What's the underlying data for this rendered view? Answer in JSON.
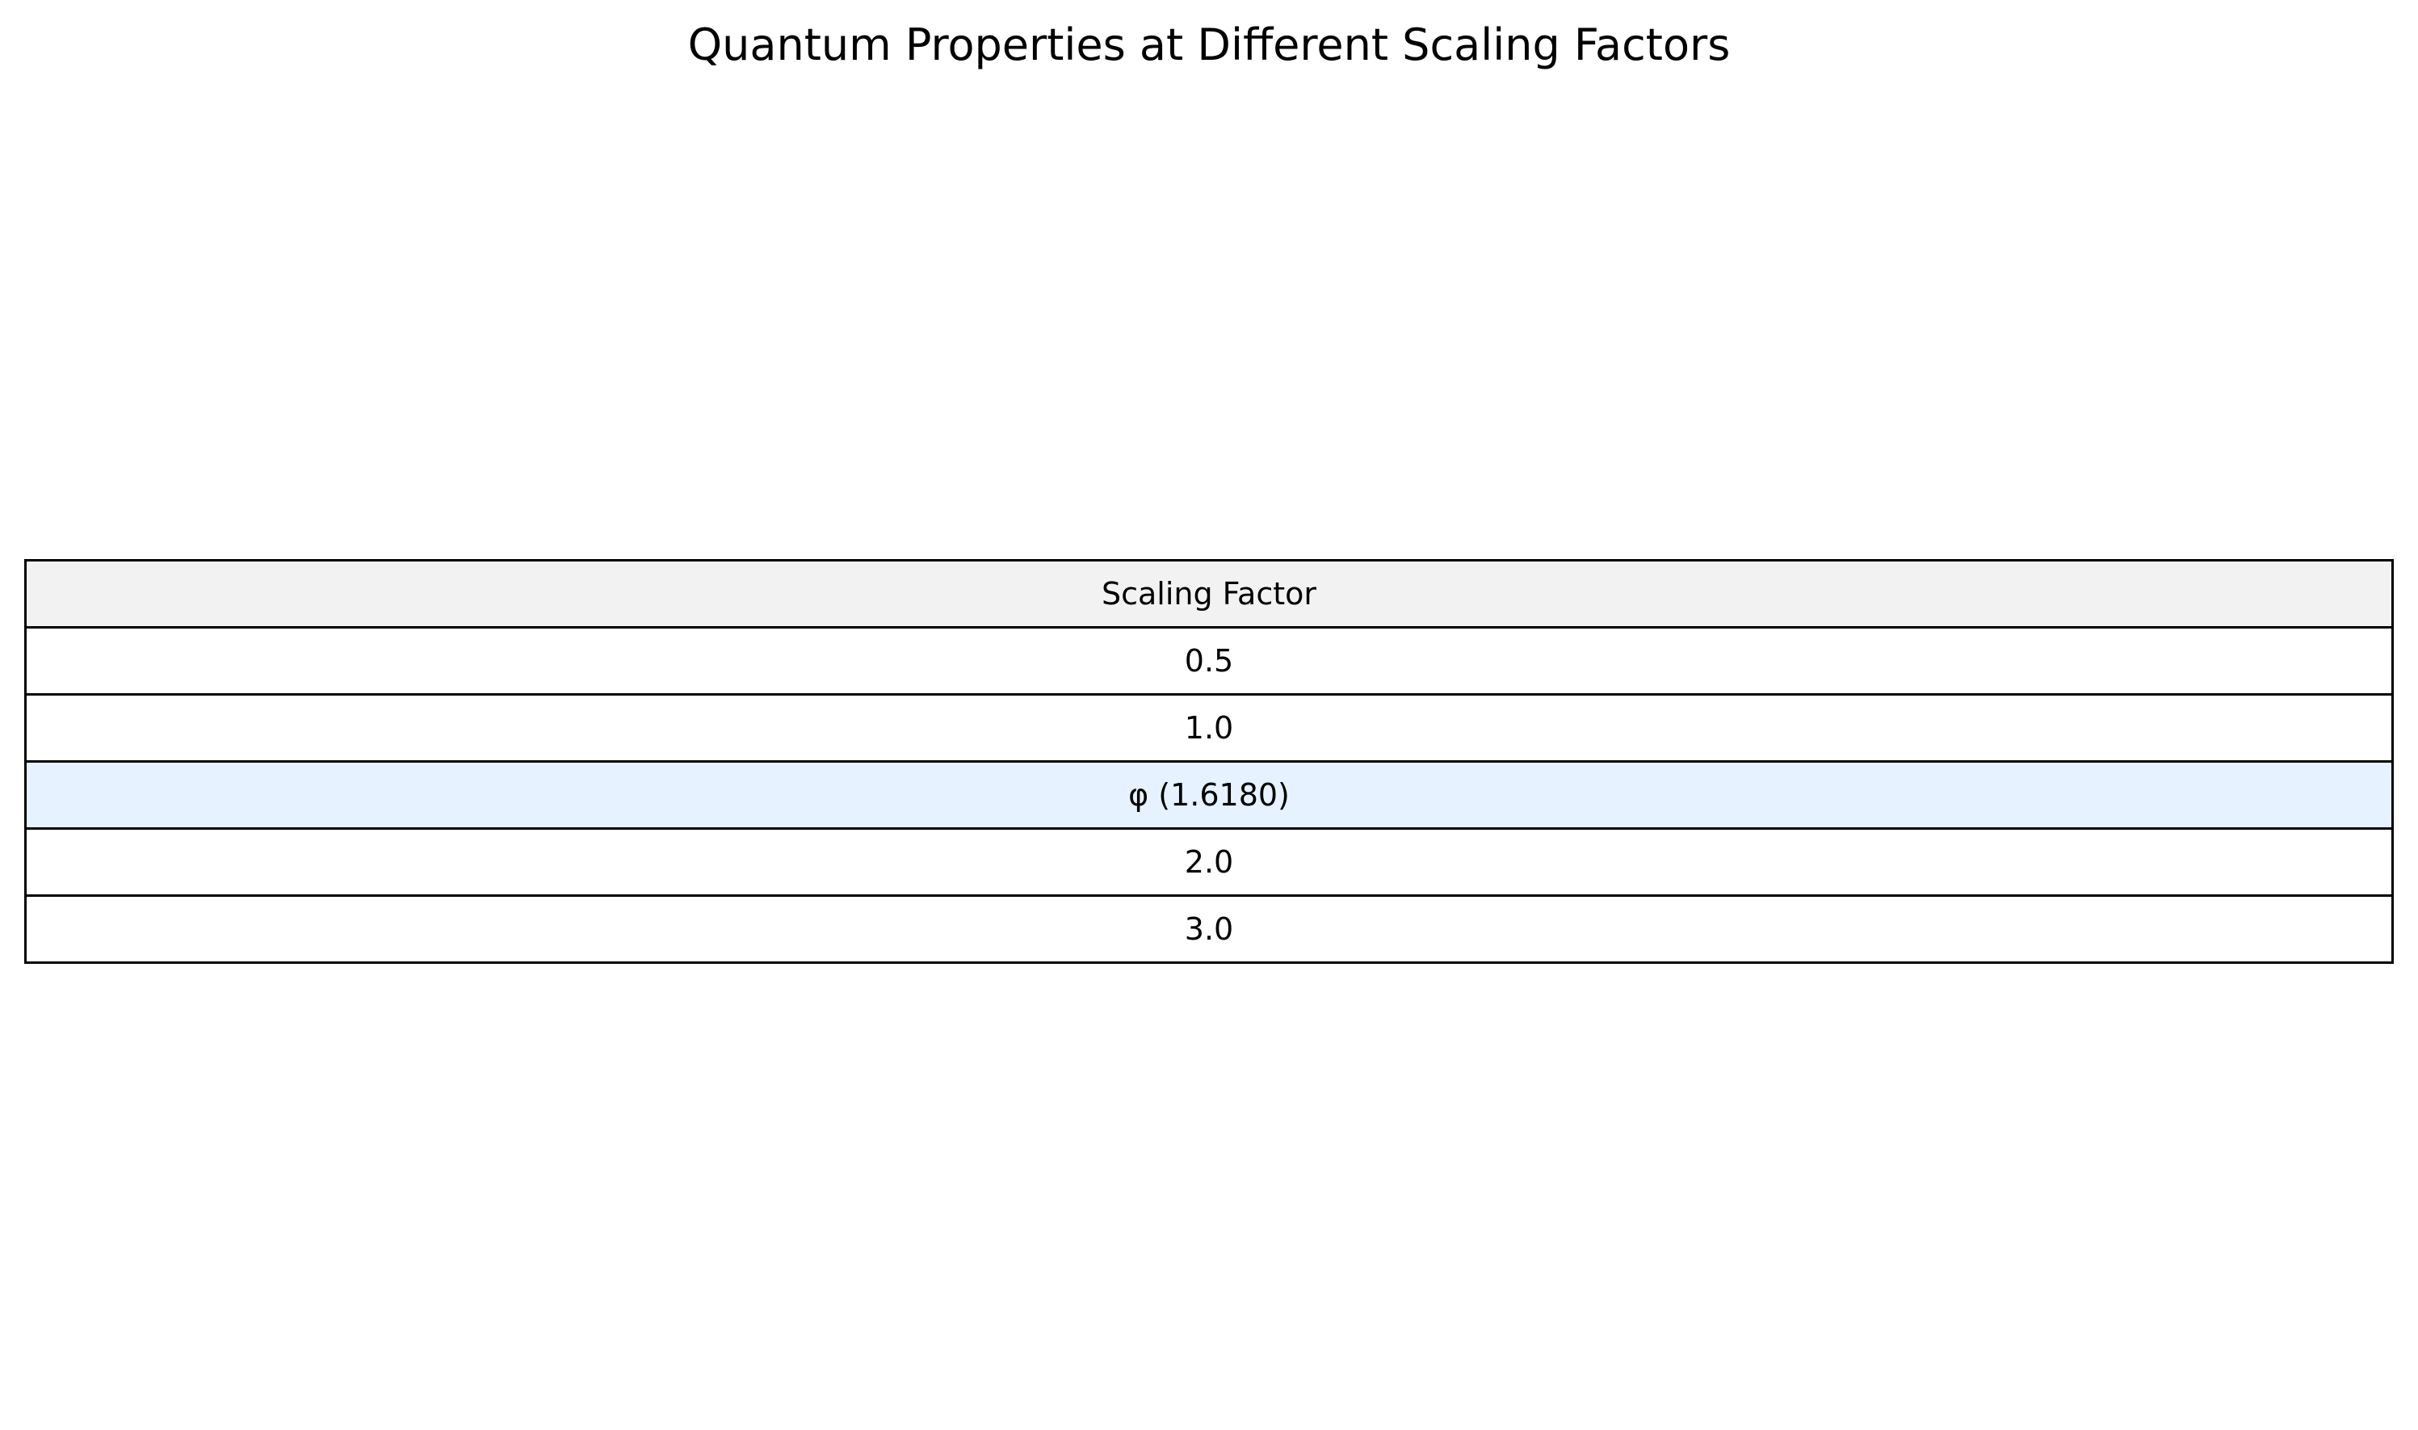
{
  "chart_data": {
    "type": "table",
    "title": "Quantum Properties at Different Scaling Factors",
    "columns": [
      "Scaling Factor"
    ],
    "rows": [
      {
        "value": "0.5",
        "highlight": false
      },
      {
        "value": "1.0",
        "highlight": false
      },
      {
        "value": "φ (1.6180)",
        "highlight": true
      },
      {
        "value": "2.0",
        "highlight": false
      },
      {
        "value": "3.0",
        "highlight": false
      }
    ],
    "colors": {
      "header_background": "#f2f2f2",
      "highlight_background": "#e6f2ff",
      "cell_background": "#ffffff",
      "border": "#000000"
    }
  }
}
